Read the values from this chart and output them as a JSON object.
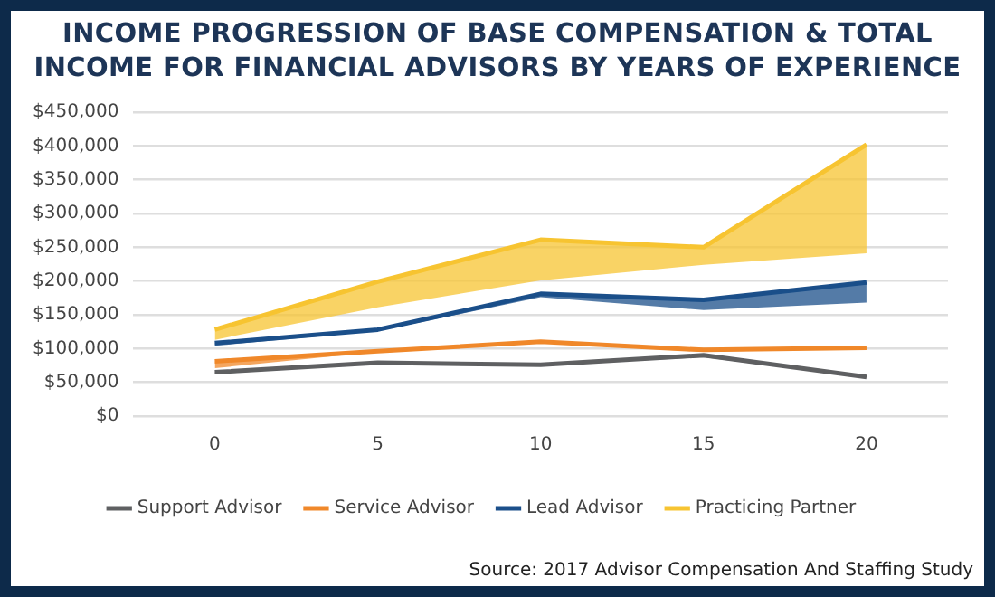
{
  "chart_data": {
    "type": "line",
    "title": "INCOME PROGRESSION OF BASE COMPENSATION & TOTAL INCOME FOR FINANCIAL ADVISORS BY YEARS OF EXPERIENCE",
    "categories": [
      "0",
      "5",
      "10",
      "15",
      "20"
    ],
    "series": [
      {
        "name": "Support Advisor",
        "color": "#5f6062",
        "values": [
          65000,
          79000,
          76000,
          90000,
          58000
        ],
        "lower": [
          62000,
          78000,
          75000,
          87000,
          57000
        ],
        "upper": [
          65000,
          79000,
          76000,
          90000,
          58000
        ]
      },
      {
        "name": "Service Advisor",
        "color": "#f0882a",
        "values": [
          81000,
          96000,
          110000,
          98000,
          101000
        ],
        "lower": [
          71000,
          95000,
          108000,
          95000,
          100000
        ],
        "upper": [
          81000,
          96000,
          110000,
          98000,
          101000
        ]
      },
      {
        "name": "Lead Advisor",
        "color": "#1b4f8a",
        "values": [
          108000,
          128000,
          181000,
          172000,
          198000
        ],
        "lower": [
          104000,
          126000,
          176000,
          157000,
          168000
        ],
        "upper": [
          108000,
          128000,
          181000,
          172000,
          198000
        ]
      },
      {
        "name": "Practicing Partner",
        "color": "#f7c431",
        "values": [
          128000,
          199000,
          261000,
          250000,
          402000
        ],
        "lower": [
          113000,
          161000,
          201000,
          224000,
          241000
        ],
        "upper": [
          128000,
          199000,
          261000,
          250000,
          402000
        ]
      }
    ],
    "ylim": [
      0,
      450000
    ],
    "yticks": [
      {
        "value": 0,
        "label": "$0"
      },
      {
        "value": 50000,
        "label": "$50,000"
      },
      {
        "value": 100000,
        "label": "$100,000"
      },
      {
        "value": 150000,
        "label": "$150,000"
      },
      {
        "value": 200000,
        "label": "$200,000"
      },
      {
        "value": 250000,
        "label": "$250,000"
      },
      {
        "value": 300000,
        "label": "$300,000"
      },
      {
        "value": 350000,
        "label": "$350,000"
      },
      {
        "value": 400000,
        "label": "$400,000"
      },
      {
        "value": 450000,
        "label": "$450,000"
      }
    ],
    "grid": "y",
    "legend": "bottom",
    "marker": "none",
    "line_style": "solid",
    "annotations": [
      "Source: 2017 Advisor Compensation And Staffing Study"
    ]
  }
}
